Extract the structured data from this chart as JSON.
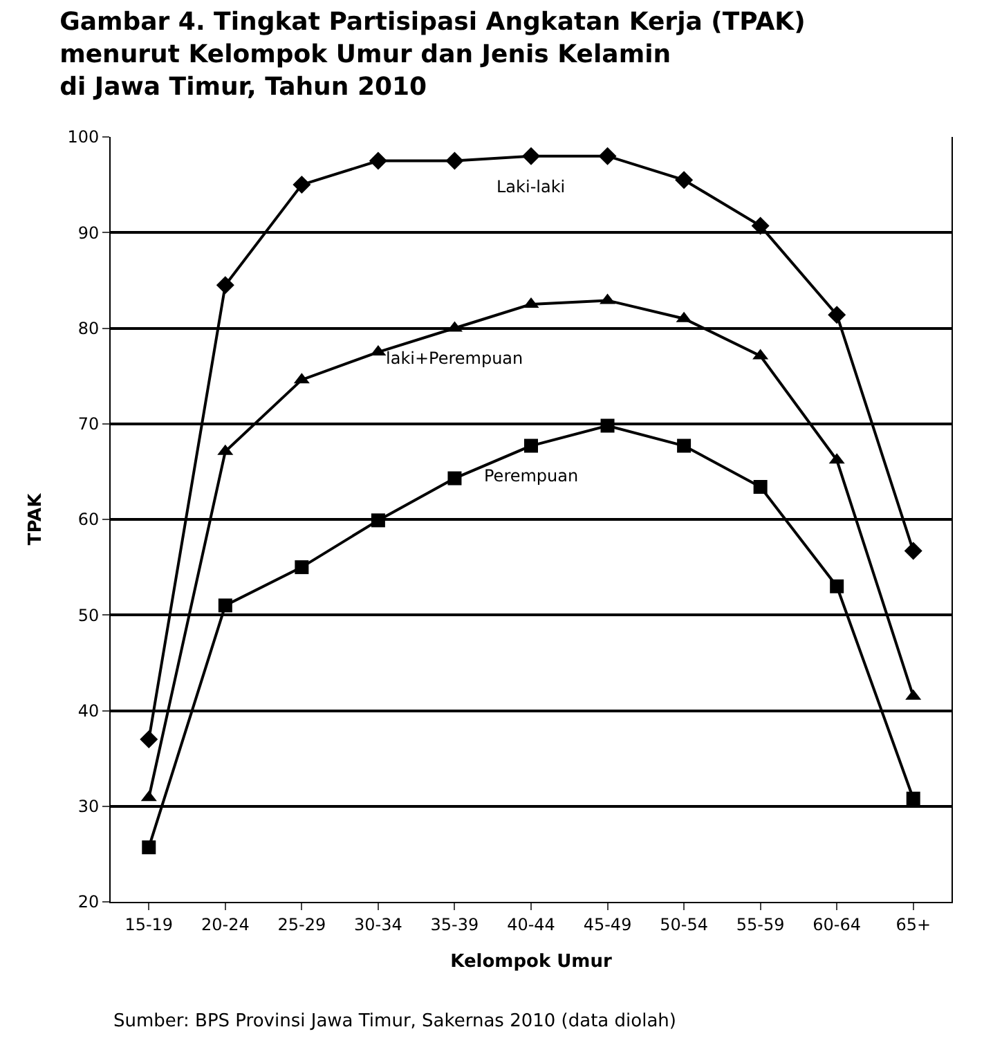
{
  "chart_data": {
    "type": "line",
    "title": "Gambar 4. Tingkat Partisipasi Angkatan Kerja (TPAK)\nmenurut Kelompok Umur dan Jenis Kelamin\ndi Jawa Timur, Tahun 2010",
    "xlabel": "Kelompok Umur",
    "ylabel": "TPAK",
    "categories": [
      "15-19",
      "20-24",
      "25-29",
      "30-34",
      "35-39",
      "40-44",
      "45-49",
      "50-54",
      "55-59",
      "60-64",
      "65+"
    ],
    "series": [
      {
        "name": "Laki-laki",
        "color": "#000000",
        "marker": "diamond",
        "values": [
          37,
          84.5,
          95,
          97.5,
          97.5,
          98,
          98,
          95.5,
          90.7,
          81.4,
          56.7
        ]
      },
      {
        "name": "laki+Perempuan",
        "color": "#000000",
        "marker": "triangle",
        "values": [
          30.9,
          67.1,
          74.6,
          77.5,
          80,
          82.5,
          82.9,
          81,
          77.1,
          66.2,
          41.5
        ]
      },
      {
        "name": "Perempuan",
        "color": "#000000",
        "marker": "square",
        "values": [
          25.7,
          51,
          55,
          59.9,
          64.3,
          67.7,
          69.8,
          67.7,
          63.4,
          53,
          30.8
        ]
      }
    ],
    "ylim": [
      20,
      100
    ],
    "yticks": [
      20,
      30,
      40,
      50,
      60,
      70,
      80,
      90,
      100
    ],
    "grid": "y",
    "legend": false,
    "line_style": "solid",
    "annotations": [
      "Sumber: BPS Provinsi Jawa Timur, Sakernas 2010 (data diolah)"
    ]
  }
}
